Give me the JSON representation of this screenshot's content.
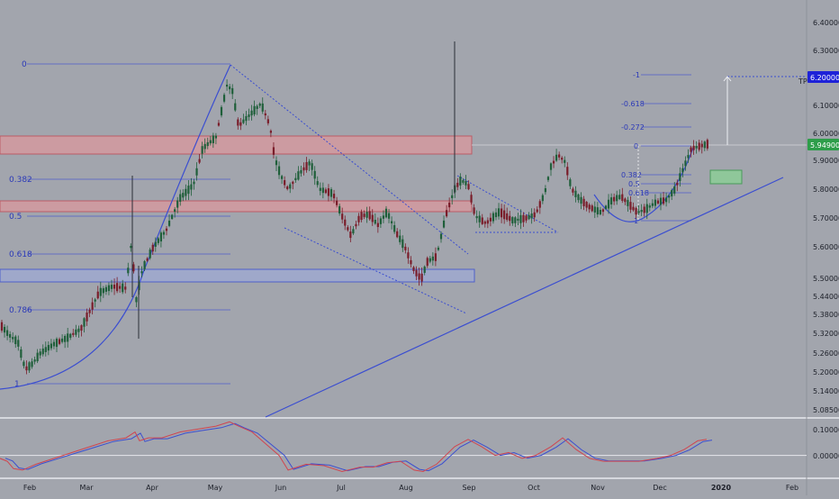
{
  "theme": {
    "background": "#a2a5ad",
    "candle_up": "#1f5f3a",
    "candle_down": "#7a1d2a",
    "fib_line": "#3b4ed0",
    "fib_text": "#2b39b8",
    "zone_red_fill": "#d49aa0",
    "zone_red_edge": "#c0505a",
    "zone_blue_fill": "#9fa9d2",
    "zone_blue_edge": "#3b4ed0",
    "target_box": "#8fc79a",
    "osc_red": "#d0454f",
    "osc_blue": "#3b4ed0",
    "label_blue": "#1e22d8",
    "label_green": "#2e9e4a",
    "axis_text": "#1c1f28"
  },
  "chart_data": {
    "type": "candlestick",
    "x_ticks": [
      "Feb",
      "Mar",
      "Apr",
      "May",
      "Jun",
      "Jul",
      "Aug",
      "Sep",
      "Oct",
      "Nov",
      "Dec",
      "2020",
      "Feb"
    ],
    "y_ticks": [
      "6.40000",
      "6.30000",
      "6.20000",
      "6.10000",
      "6.00000",
      "5.90000",
      "5.80000",
      "5.70000",
      "5.60000",
      "5.50000",
      "5.44000",
      "5.38000",
      "5.32000",
      "5.26000",
      "5.20000",
      "5.14000",
      "5.08500"
    ],
    "price_ylim": [
      5.065,
      6.465
    ],
    "price_labels": {
      "target": "6.20000",
      "last": "5.94900"
    },
    "tp_label": "TP",
    "fib_main": {
      "levels": [
        "0",
        "0.382",
        "0.5",
        "0.618",
        "0.786",
        "1"
      ]
    },
    "fib_ext": {
      "levels": [
        "-1",
        "-0.618",
        "-0.272",
        "0",
        "0.382",
        "0.5",
        "0.618",
        "1"
      ]
    },
    "osc_ticks": [
      "0.10000",
      "0.00000"
    ],
    "osc_ylim": [
      -0.075,
      0.125
    ],
    "oscillator": [
      [
        0,
        -0.01
      ],
      [
        8,
        -0.02
      ],
      [
        15,
        -0.045
      ],
      [
        25,
        -0.05
      ],
      [
        40,
        -0.03
      ],
      [
        60,
        -0.01
      ],
      [
        80,
        0.01
      ],
      [
        100,
        0.03
      ],
      [
        120,
        0.05
      ],
      [
        140,
        0.06
      ],
      [
        150,
        0.08
      ],
      [
        155,
        0.05
      ],
      [
        165,
        0.06
      ],
      [
        180,
        0.06
      ],
      [
        200,
        0.08
      ],
      [
        220,
        0.09
      ],
      [
        240,
        0.1
      ],
      [
        255,
        0.115
      ],
      [
        265,
        0.1
      ],
      [
        280,
        0.08
      ],
      [
        295,
        0.04
      ],
      [
        310,
        0.0
      ],
      [
        320,
        -0.05
      ],
      [
        340,
        -0.03
      ],
      [
        360,
        -0.035
      ],
      [
        380,
        -0.055
      ],
      [
        400,
        -0.04
      ],
      [
        415,
        -0.04
      ],
      [
        430,
        -0.025
      ],
      [
        445,
        -0.02
      ],
      [
        460,
        -0.05
      ],
      [
        470,
        -0.055
      ],
      [
        485,
        -0.03
      ],
      [
        505,
        0.03
      ],
      [
        520,
        0.055
      ],
      [
        535,
        0.03
      ],
      [
        550,
        0.0
      ],
      [
        565,
        0.01
      ],
      [
        580,
        -0.01
      ],
      [
        595,
        0.0
      ],
      [
        612,
        0.03
      ],
      [
        625,
        0.06
      ],
      [
        640,
        0.02
      ],
      [
        655,
        -0.01
      ],
      [
        670,
        -0.02
      ],
      [
        690,
        -0.02
      ],
      [
        710,
        -0.02
      ],
      [
        730,
        -0.01
      ],
      [
        745,
        0.0
      ],
      [
        760,
        0.02
      ],
      [
        775,
        0.05
      ],
      [
        785,
        0.055
      ]
    ]
  }
}
